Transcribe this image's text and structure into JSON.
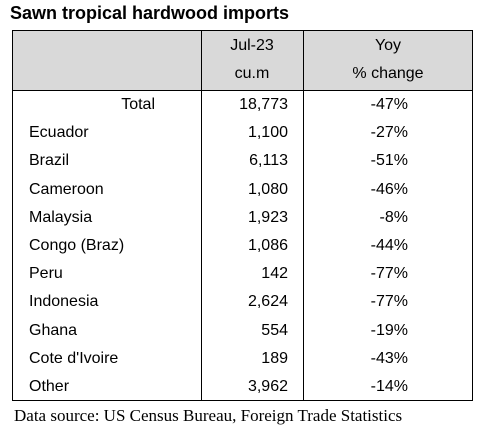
{
  "header": {
    "title": "Sawn tropical hardwood imports"
  },
  "table": {
    "columns": [
      [
        "Jul-23",
        "cu.m"
      ],
      [
        "Yoy",
        "% change"
      ]
    ],
    "rows": [
      [
        "Total",
        "18,773",
        "-47%"
      ],
      [
        "Ecuador",
        "1,100",
        "-27%"
      ],
      [
        "Brazil",
        "6,113",
        "-51%"
      ],
      [
        "Cameroon",
        "1,080",
        "-46%"
      ],
      [
        "Malaysia",
        "1,923",
        "-8%"
      ],
      [
        "Congo (Braz)",
        "1,086",
        "-44%"
      ],
      [
        "Peru",
        "142",
        "-77%"
      ],
      [
        "Indonesia",
        "2,624",
        "-77%"
      ],
      [
        "Ghana",
        "554",
        "-19%"
      ],
      [
        "Cote d'Ivoire",
        "189",
        "-43%"
      ],
      [
        "Other",
        "3,962",
        "-14%"
      ]
    ]
  },
  "footer": {
    "source": "Data source: US Census Bureau, Foreign Trade Statistics"
  }
}
